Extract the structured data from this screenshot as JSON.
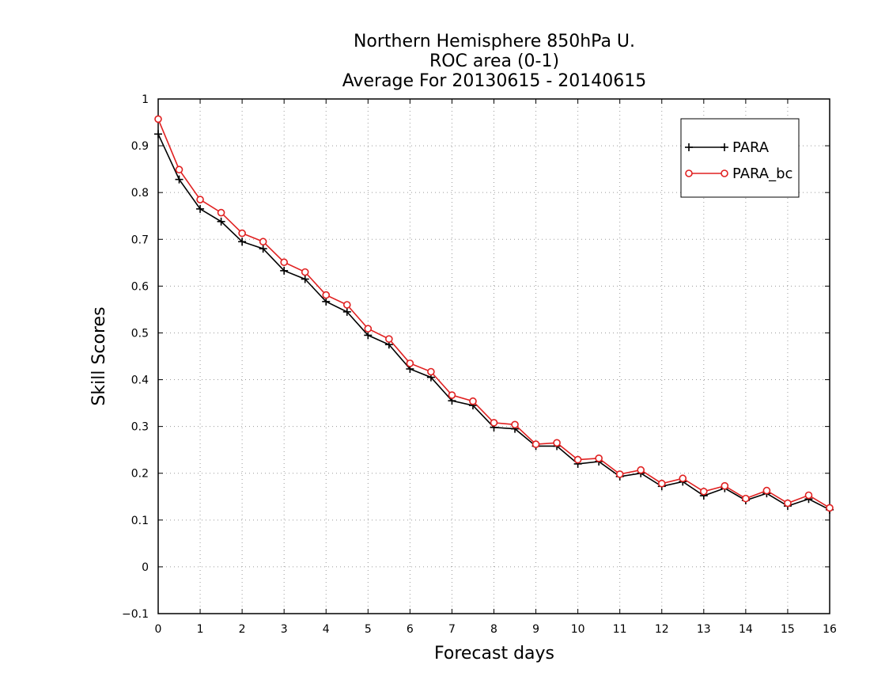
{
  "chart_data": {
    "type": "line",
    "title_lines": [
      "Northern Hemisphere 850hPa U.",
      "ROC area (0-1)",
      "Average For 20130615 - 20140615"
    ],
    "xlabel": "Forecast days",
    "ylabel": "Skill Scores",
    "xlim": [
      0,
      16
    ],
    "ylim": [
      -0.1,
      1
    ],
    "x_ticks": [
      0,
      1,
      2,
      3,
      4,
      5,
      6,
      7,
      8,
      9,
      10,
      11,
      12,
      13,
      14,
      15,
      16
    ],
    "y_ticks": [
      -0.1,
      0,
      0.1,
      0.2,
      0.3,
      0.4,
      0.5,
      0.6,
      0.7,
      0.8,
      0.9,
      1
    ],
    "y_tick_labels": [
      "−0.1",
      "0",
      "0.1",
      "0.2",
      "0.3",
      "0.4",
      "0.5",
      "0.6",
      "0.7",
      "0.8",
      "0.9",
      "1"
    ],
    "grid": true,
    "legend_position": "top-right",
    "x": [
      0,
      0.5,
      1,
      1.5,
      2,
      2.5,
      3,
      3.5,
      4,
      4.5,
      5,
      5.5,
      6,
      6.5,
      7,
      7.5,
      8,
      8.5,
      9,
      9.5,
      10,
      10.5,
      11,
      11.5,
      12,
      12.5,
      13,
      13.5,
      14,
      14.5,
      15,
      15.5,
      16
    ],
    "series": [
      {
        "name": "PARA",
        "color": "#000000",
        "marker": "plus",
        "values": [
          0.925,
          0.828,
          0.765,
          0.738,
          0.695,
          0.68,
          0.633,
          0.615,
          0.567,
          0.545,
          0.495,
          0.475,
          0.423,
          0.405,
          0.355,
          0.345,
          0.298,
          0.295,
          0.258,
          0.258,
          0.22,
          0.225,
          0.193,
          0.2,
          0.172,
          0.182,
          0.152,
          0.168,
          0.142,
          0.157,
          0.13,
          0.145,
          0.122
        ]
      },
      {
        "name": "PARA_bc",
        "color": "#e02020",
        "marker": "circle",
        "values": [
          0.957,
          0.849,
          0.785,
          0.757,
          0.713,
          0.695,
          0.651,
          0.63,
          0.581,
          0.56,
          0.509,
          0.487,
          0.435,
          0.417,
          0.367,
          0.354,
          0.308,
          0.304,
          0.262,
          0.265,
          0.229,
          0.232,
          0.198,
          0.207,
          0.178,
          0.189,
          0.161,
          0.173,
          0.146,
          0.163,
          0.136,
          0.153,
          0.126
        ]
      }
    ]
  }
}
